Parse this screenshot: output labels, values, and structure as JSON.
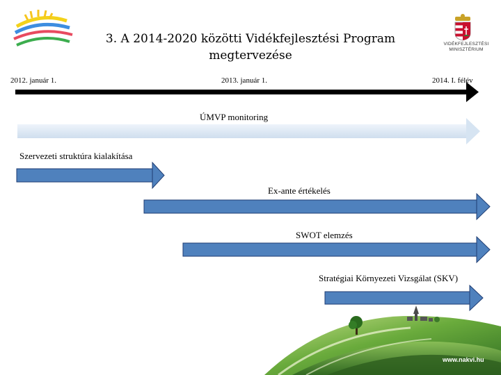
{
  "slide": {
    "title_line1": "3. A 2014-2020 közötti Vidékfejlesztési Program",
    "title_line2": "megtervezése"
  },
  "timeline": {
    "dates": [
      "2012. január 1.",
      "2013. január 1.",
      "2014. I. félév"
    ]
  },
  "activities": {
    "umvp": "ÚMVP monitoring",
    "struct": "Szervezeti struktúra kialakítása",
    "exante": "Ex-ante értékelés",
    "swot": "SWOT elemzés",
    "skv": "Stratégiai Környezeti Vizsgálat (SKV)"
  },
  "branding": {
    "ministry_line1": "VIDÉKFEJLESZTÉSI",
    "ministry_line2": "MINISZTÉRIUM",
    "footer_url": "www.nakvi.hu"
  },
  "colors": {
    "blue_arrow": "#4f81bd",
    "blue_outline": "#1f3d73",
    "light_arrow": "#dbe8f5",
    "timeline": "#000000",
    "hill_green": "#4d8f2e"
  }
}
